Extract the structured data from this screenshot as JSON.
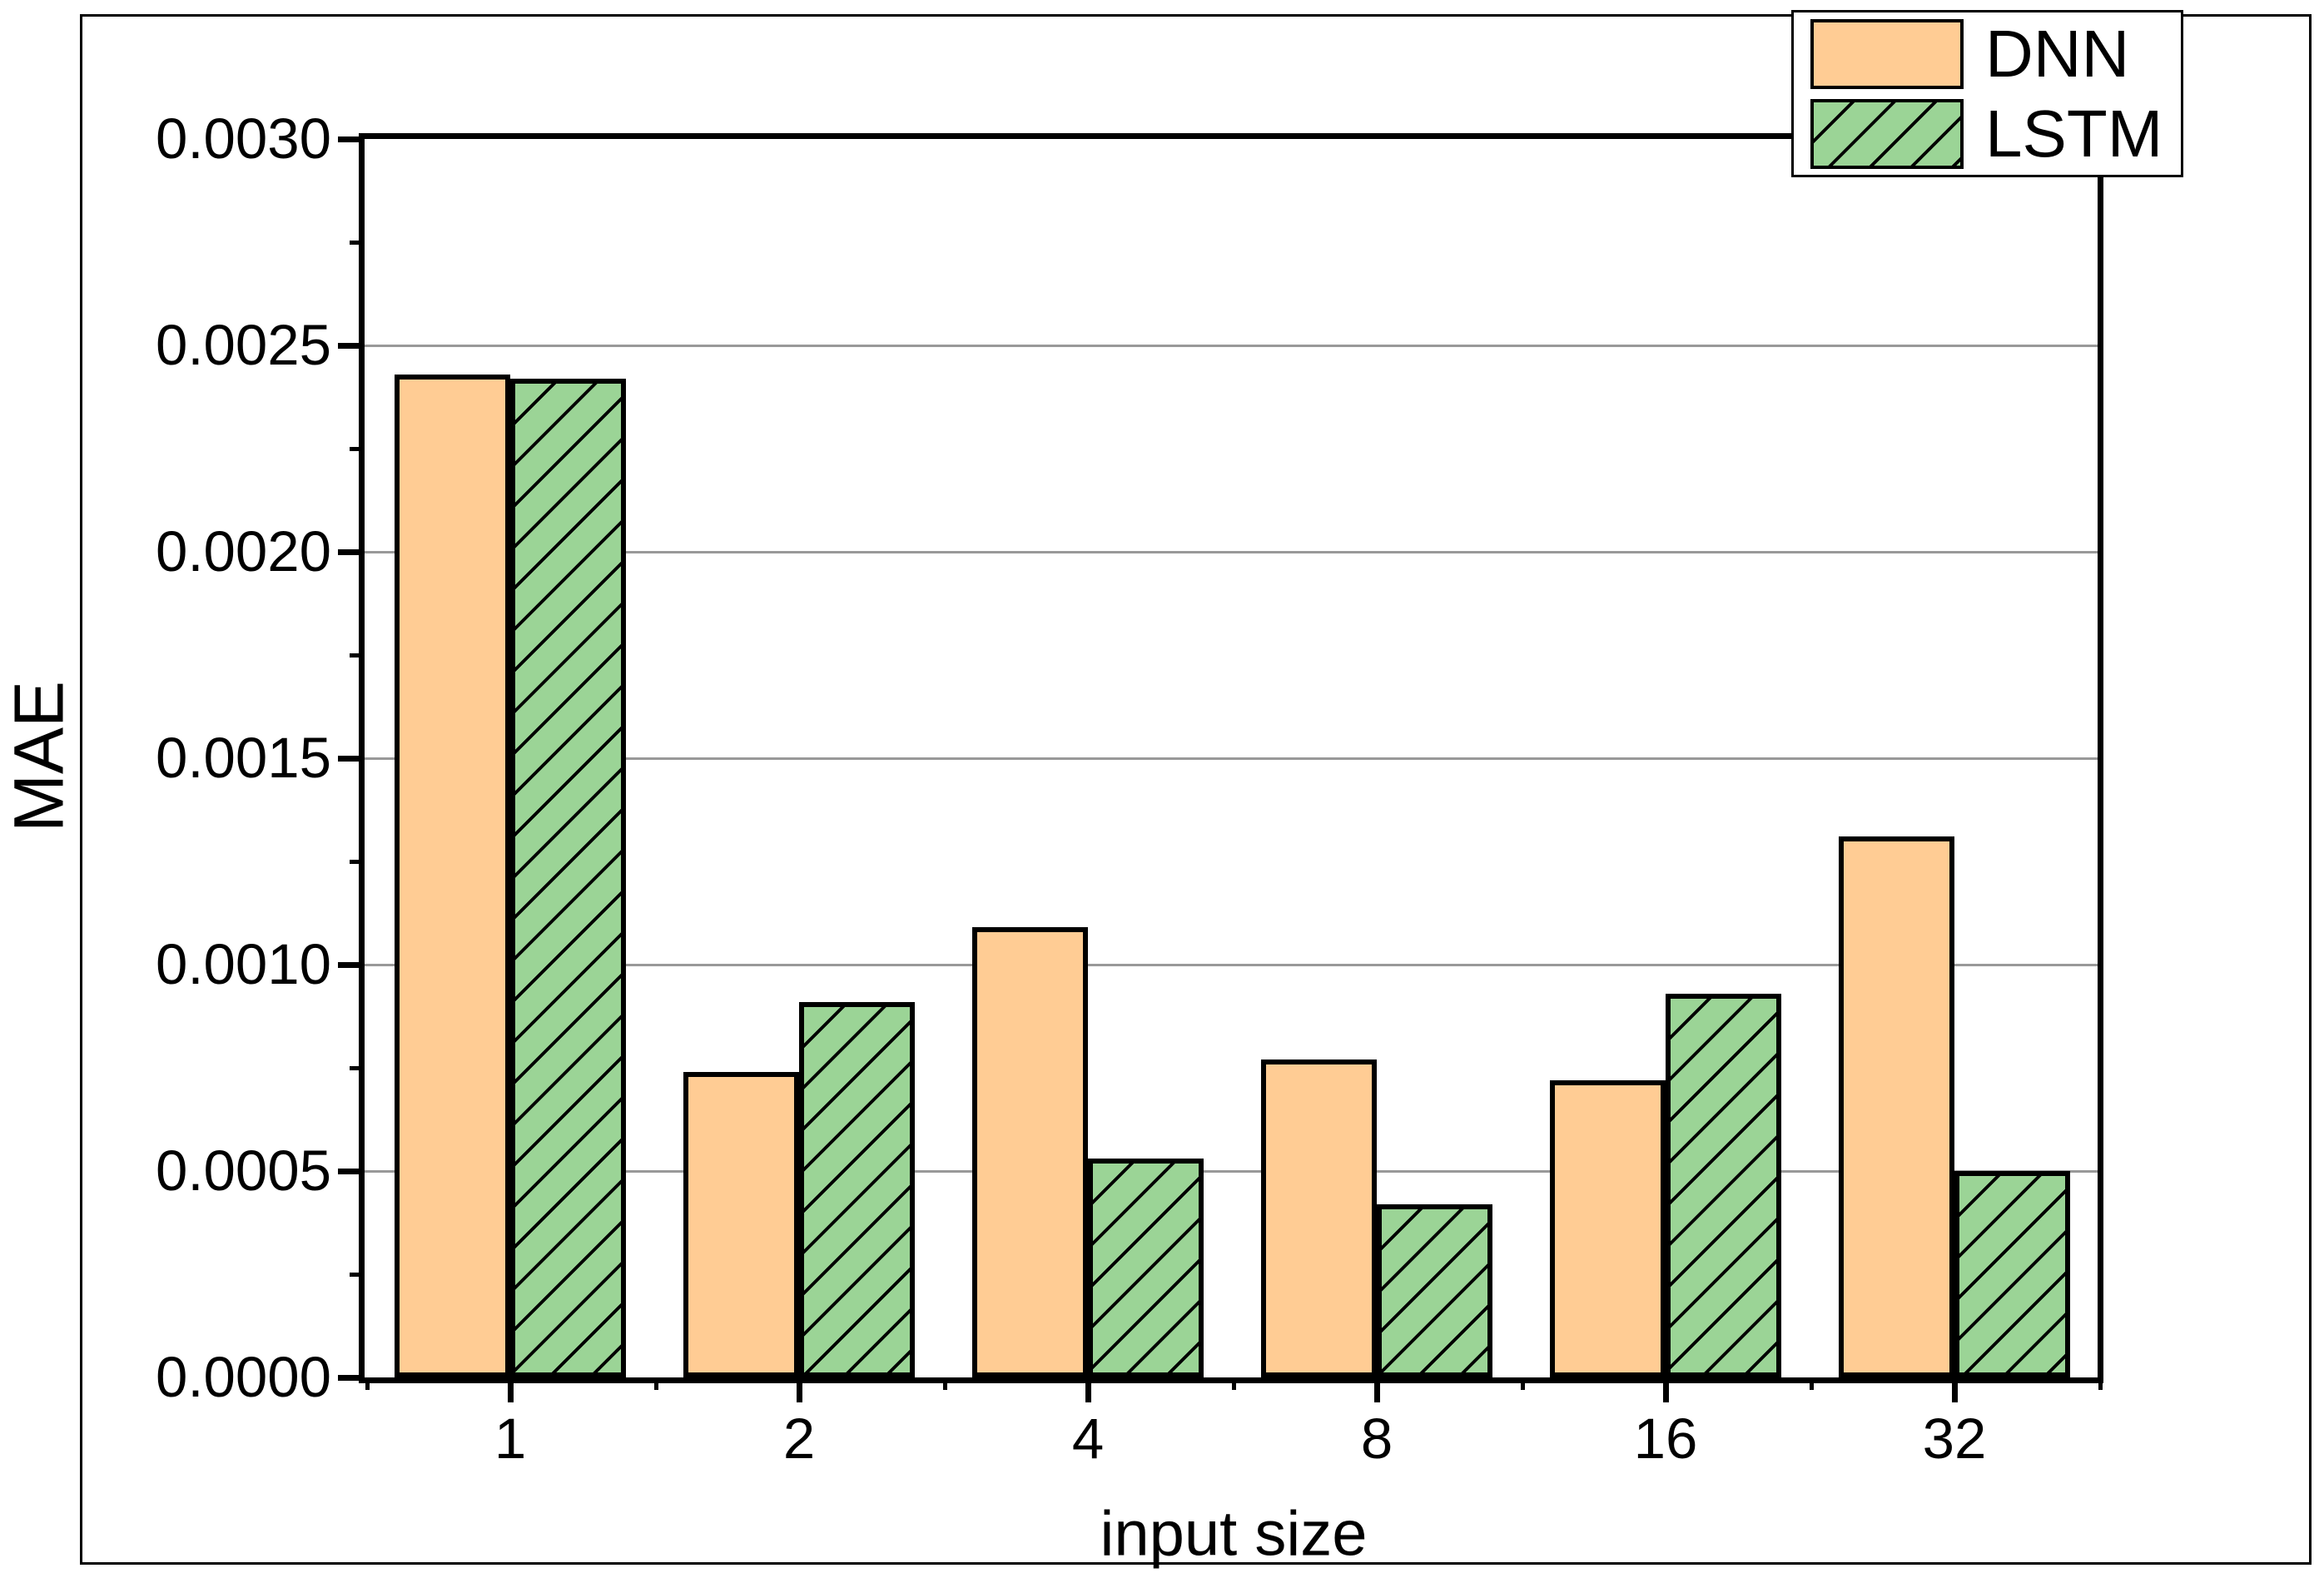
{
  "chart_data": {
    "type": "bar",
    "title": "",
    "xlabel": "input size",
    "ylabel": "MAE",
    "categories": [
      "1",
      "2",
      "4",
      "8",
      "16",
      "32"
    ],
    "series": [
      {
        "name": "DNN",
        "color": "#FFCC94",
        "hatch": "none",
        "values": [
          0.00243,
          0.00074,
          0.00109,
          0.00077,
          0.00072,
          0.00131
        ]
      },
      {
        "name": "LSTM",
        "color": "#9BD496",
        "hatch": "diagonal-forward",
        "values": [
          0.00242,
          0.00091,
          0.00053,
          0.00042,
          0.00093,
          0.0005
        ]
      }
    ],
    "ylim": [
      0,
      0.003
    ],
    "ytick_step": 0.0005,
    "ytick_labels": [
      "0.0000",
      "0.0005",
      "0.0010",
      "0.0015",
      "0.0020",
      "0.0025",
      "0.0030"
    ],
    "grid": "horizontal-major",
    "grid_color": "#999999",
    "legend_position": "top-right",
    "bar_edge_color": "#000000"
  }
}
